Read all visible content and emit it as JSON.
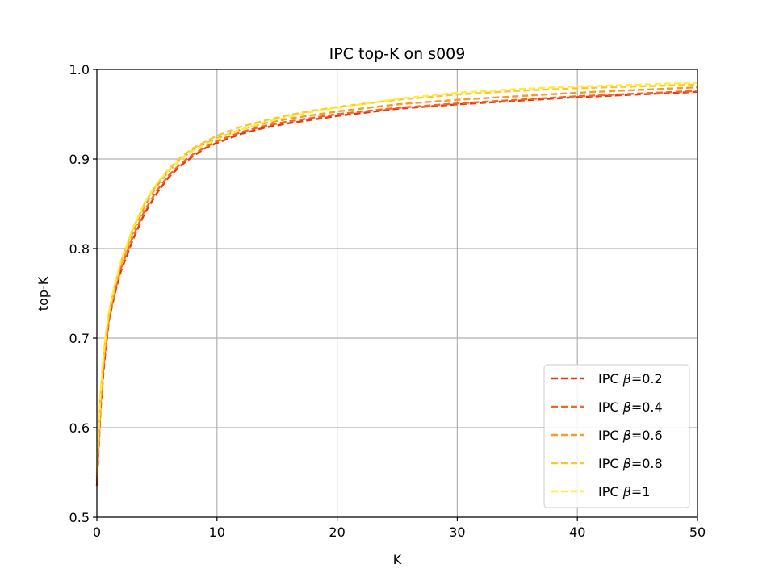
{
  "chart_data": {
    "type": "line",
    "title": "IPC top-K on s009",
    "xlabel": "K",
    "ylabel": "top-K",
    "xlim": [
      0,
      50
    ],
    "ylim": [
      0.5,
      1.0
    ],
    "xticks": [
      "0",
      "10",
      "20",
      "30",
      "40",
      "50"
    ],
    "yticks": [
      "0.5",
      "0.6",
      "0.7",
      "0.8",
      "0.9",
      "1.0"
    ],
    "grid": true,
    "legend_position": "lower-right",
    "series": [
      {
        "name": "IPC β=0.2",
        "label_prefix": "IPC ",
        "label_symbol": "β",
        "label_value": "=0.2",
        "color": "#e8350f",
        "line_style": "dashed",
        "x": [
          0,
          0.3,
          0.6,
          1,
          1.5,
          2,
          3,
          4,
          5,
          6,
          7,
          8,
          9,
          10,
          12,
          14,
          16,
          18,
          20,
          25,
          30,
          35,
          40,
          45,
          50
        ],
        "y": [
          0.535,
          0.62,
          0.67,
          0.72,
          0.75,
          0.775,
          0.81,
          0.84,
          0.862,
          0.88,
          0.893,
          0.903,
          0.912,
          0.918,
          0.928,
          0.935,
          0.94,
          0.944,
          0.948,
          0.956,
          0.961,
          0.965,
          0.969,
          0.972,
          0.975
        ]
      },
      {
        "name": "IPC β=0.4",
        "label_prefix": "IPC ",
        "label_symbol": "β",
        "label_value": "=0.4",
        "color": "#f4642a",
        "line_style": "dashed",
        "x": [
          0,
          0.3,
          0.6,
          1,
          1.5,
          2,
          3,
          4,
          5,
          6,
          7,
          8,
          9,
          10,
          12,
          14,
          16,
          18,
          20,
          25,
          30,
          35,
          40,
          45,
          50
        ],
        "y": [
          0.54,
          0.625,
          0.675,
          0.722,
          0.752,
          0.778,
          0.813,
          0.843,
          0.865,
          0.882,
          0.895,
          0.905,
          0.913,
          0.92,
          0.93,
          0.937,
          0.942,
          0.946,
          0.95,
          0.957,
          0.962,
          0.966,
          0.97,
          0.973,
          0.976
        ]
      },
      {
        "name": "IPC β=0.6",
        "label_prefix": "IPC ",
        "label_symbol": "β",
        "label_value": "=0.6",
        "color": "#f89a2a",
        "line_style": "dashed",
        "x": [
          0,
          0.3,
          0.6,
          1,
          1.5,
          2,
          3,
          4,
          5,
          6,
          7,
          8,
          9,
          10,
          12,
          14,
          16,
          18,
          20,
          25,
          30,
          35,
          40,
          45,
          50
        ],
        "y": [
          0.545,
          0.63,
          0.68,
          0.725,
          0.756,
          0.782,
          0.818,
          0.848,
          0.87,
          0.887,
          0.9,
          0.91,
          0.917,
          0.923,
          0.933,
          0.94,
          0.945,
          0.949,
          0.953,
          0.961,
          0.966,
          0.97,
          0.974,
          0.977,
          0.98
        ]
      },
      {
        "name": "IPC β=0.8",
        "label_prefix": "IPC ",
        "label_symbol": "β",
        "label_value": "=0.8",
        "color": "#fbc731",
        "line_style": "dashed",
        "x": [
          0,
          0.3,
          0.6,
          1,
          1.5,
          2,
          3,
          4,
          5,
          6,
          7,
          8,
          9,
          10,
          12,
          14,
          16,
          18,
          20,
          25,
          30,
          35,
          40,
          45,
          50
        ],
        "y": [
          0.55,
          0.635,
          0.685,
          0.728,
          0.759,
          0.785,
          0.822,
          0.851,
          0.872,
          0.889,
          0.902,
          0.912,
          0.919,
          0.926,
          0.936,
          0.943,
          0.949,
          0.954,
          0.958,
          0.966,
          0.972,
          0.976,
          0.979,
          0.981,
          0.983
        ]
      },
      {
        "name": "IPC β=1",
        "label_prefix": "IPC ",
        "label_symbol": "β",
        "label_value": "=1",
        "color": "#ffee33",
        "line_style": "dashed",
        "x": [
          0,
          0.3,
          0.6,
          1,
          1.5,
          2,
          3,
          4,
          5,
          6,
          7,
          8,
          9,
          10,
          12,
          14,
          16,
          18,
          20,
          25,
          30,
          35,
          40,
          45,
          50
        ],
        "y": [
          0.555,
          0.64,
          0.69,
          0.73,
          0.76,
          0.786,
          0.823,
          0.852,
          0.873,
          0.888,
          0.9,
          0.909,
          0.916,
          0.922,
          0.933,
          0.941,
          0.947,
          0.953,
          0.957,
          0.967,
          0.974,
          0.978,
          0.981,
          0.983,
          0.985
        ]
      }
    ]
  }
}
